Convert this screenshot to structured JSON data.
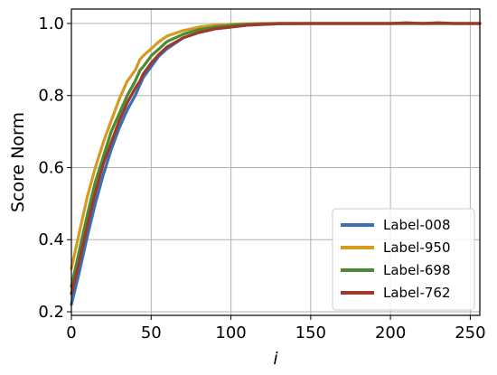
{
  "chart_data": {
    "type": "line",
    "title": "",
    "xlabel": "i",
    "ylabel": "Score Norm",
    "xlim": [
      0,
      256
    ],
    "ylim": [
      0.19,
      1.04
    ],
    "xticks": [
      0,
      50,
      100,
      150,
      200,
      250
    ],
    "yticks": [
      0.2,
      0.4,
      0.6,
      0.8,
      1.0
    ],
    "xtick_labels": [
      "0",
      "50",
      "100",
      "150",
      "200",
      "250"
    ],
    "ytick_labels": [
      "0.2",
      "0.4",
      "0.6",
      "0.8",
      "1.0"
    ],
    "grid": true,
    "legend_position": "bottom-right",
    "series": [
      {
        "name": "Label-008",
        "color": "#3a6fb5",
        "x": [
          0,
          5,
          10,
          15,
          20,
          25,
          30,
          35,
          40,
          43,
          45,
          50,
          55,
          60,
          70,
          80,
          90,
          100,
          110,
          120,
          130,
          150,
          170,
          200,
          230,
          256
        ],
        "y": [
          0.22,
          0.31,
          0.41,
          0.5,
          0.58,
          0.65,
          0.71,
          0.76,
          0.8,
          0.83,
          0.85,
          0.88,
          0.91,
          0.93,
          0.96,
          0.975,
          0.985,
          0.99,
          0.995,
          0.997,
          0.999,
          1.0,
          1.0,
          1.0,
          1.0,
          1.0
        ]
      },
      {
        "name": "Label-950",
        "color": "#d69a1f",
        "x": [
          0,
          5,
          10,
          15,
          20,
          25,
          30,
          35,
          40,
          43,
          45,
          50,
          55,
          60,
          70,
          80,
          90,
          100,
          110,
          120,
          130,
          150,
          170,
          200,
          230,
          256
        ],
        "y": [
          0.32,
          0.42,
          0.52,
          0.6,
          0.67,
          0.73,
          0.79,
          0.84,
          0.87,
          0.9,
          0.91,
          0.93,
          0.95,
          0.965,
          0.98,
          0.99,
          0.995,
          0.998,
          0.999,
          1.0,
          1.0,
          1.0,
          1.0,
          1.0,
          1.0,
          1.0
        ]
      },
      {
        "name": "Label-698",
        "color": "#4a8c35",
        "x": [
          0,
          5,
          10,
          15,
          20,
          25,
          30,
          35,
          40,
          43,
          45,
          50,
          55,
          60,
          70,
          80,
          90,
          100,
          110,
          120,
          130,
          150,
          170,
          200,
          230,
          256
        ],
        "y": [
          0.27,
          0.37,
          0.47,
          0.56,
          0.63,
          0.7,
          0.75,
          0.8,
          0.84,
          0.87,
          0.88,
          0.91,
          0.93,
          0.95,
          0.97,
          0.983,
          0.99,
          0.995,
          0.998,
          0.999,
          1.0,
          1.0,
          1.0,
          1.0,
          1.0,
          1.0
        ]
      },
      {
        "name": "Label-762",
        "color": "#9e3a2a",
        "x": [
          0,
          5,
          10,
          15,
          20,
          25,
          30,
          35,
          40,
          43,
          45,
          50,
          55,
          60,
          70,
          80,
          90,
          100,
          110,
          120,
          130,
          150,
          170,
          200,
          210,
          220,
          230,
          240,
          256
        ],
        "y": [
          0.25,
          0.34,
          0.44,
          0.53,
          0.61,
          0.67,
          0.73,
          0.78,
          0.82,
          0.84,
          0.86,
          0.89,
          0.915,
          0.935,
          0.96,
          0.975,
          0.985,
          0.99,
          0.995,
          0.998,
          1.0,
          1.0,
          1.0,
          1.0,
          1.002,
          1.0,
          1.002,
          1.0,
          1.0
        ]
      }
    ]
  }
}
